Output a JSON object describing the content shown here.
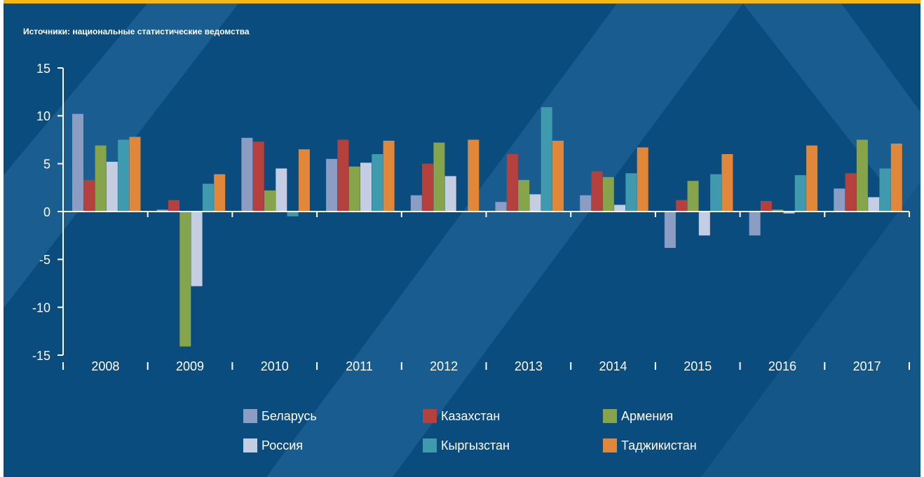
{
  "chart_data": {
    "type": "bar",
    "subtitle": "Источники: национальные статистические ведомства",
    "categories": [
      "2008",
      "2009",
      "2010",
      "2011",
      "2012",
      "2013",
      "2014",
      "2015",
      "2016",
      "2017"
    ],
    "series": [
      {
        "name": "Беларусь",
        "color": "#8b9dc3",
        "values": [
          10.2,
          0.2,
          7.7,
          5.5,
          1.7,
          1.0,
          1.7,
          -3.8,
          -2.5,
          2.4
        ]
      },
      {
        "name": "Казахстан",
        "color": "#b5413e",
        "values": [
          3.3,
          1.2,
          7.3,
          7.5,
          5.0,
          6.0,
          4.2,
          1.2,
          1.1,
          4.0
        ]
      },
      {
        "name": "Армения",
        "color": "#86a44a",
        "values": [
          6.9,
          -14.1,
          2.2,
          4.7,
          7.2,
          3.3,
          3.6,
          3.2,
          0.2,
          7.5
        ]
      },
      {
        "name": "Россия",
        "color": "#c5cde3",
        "values": [
          5.2,
          -7.8,
          4.5,
          5.1,
          3.7,
          1.8,
          0.7,
          -2.5,
          -0.2,
          1.5
        ]
      },
      {
        "name": "Кыргызстан",
        "color": "#3f9aad",
        "values": [
          7.5,
          2.9,
          -0.5,
          6.0,
          0,
          10.9,
          4.0,
          3.9,
          3.8,
          4.5
        ]
      },
      {
        "name": "Таджикистан",
        "color": "#e0873a",
        "values": [
          7.8,
          3.9,
          6.5,
          7.4,
          7.5,
          7.4,
          6.7,
          6.0,
          6.9,
          7.1
        ]
      }
    ],
    "ylim": [
      -15,
      15
    ],
    "yticks": [
      -15,
      -10,
      -5,
      0,
      5,
      10,
      15
    ]
  }
}
